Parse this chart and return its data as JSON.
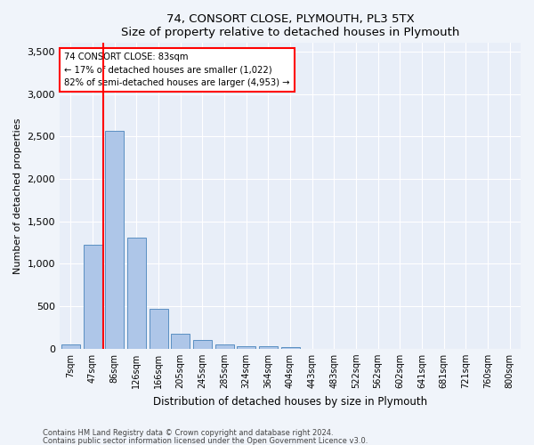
{
  "title1": "74, CONSORT CLOSE, PLYMOUTH, PL3 5TX",
  "title2": "Size of property relative to detached houses in Plymouth",
  "xlabel": "Distribution of detached houses by size in Plymouth",
  "ylabel": "Number of detached properties",
  "categories": [
    "7sqm",
    "47sqm",
    "86sqm",
    "126sqm",
    "166sqm",
    "205sqm",
    "245sqm",
    "285sqm",
    "324sqm",
    "364sqm",
    "404sqm",
    "443sqm",
    "483sqm",
    "522sqm",
    "562sqm",
    "602sqm",
    "641sqm",
    "681sqm",
    "721sqm",
    "760sqm",
    "800sqm"
  ],
  "values": [
    50,
    1220,
    2570,
    1310,
    470,
    175,
    105,
    50,
    30,
    30,
    20,
    0,
    0,
    0,
    0,
    0,
    0,
    0,
    0,
    0,
    0
  ],
  "bar_color": "#aec6e8",
  "bar_edge_color": "#5a8fc2",
  "vline_color": "red",
  "annotation_line1": "74 CONSORT CLOSE: 83sqm",
  "annotation_line2": "← 17% of detached houses are smaller (1,022)",
  "annotation_line3": "82% of semi-detached houses are larger (4,953) →",
  "annotation_box_color": "white",
  "annotation_box_edge": "red",
  "ylim": [
    0,
    3600
  ],
  "yticks": [
    0,
    500,
    1000,
    1500,
    2000,
    2500,
    3000,
    3500
  ],
  "footer1": "Contains HM Land Registry data © Crown copyright and database right 2024.",
  "footer2": "Contains public sector information licensed under the Open Government Licence v3.0.",
  "bg_color": "#f0f4fa",
  "plot_bg_color": "#e8eef8"
}
